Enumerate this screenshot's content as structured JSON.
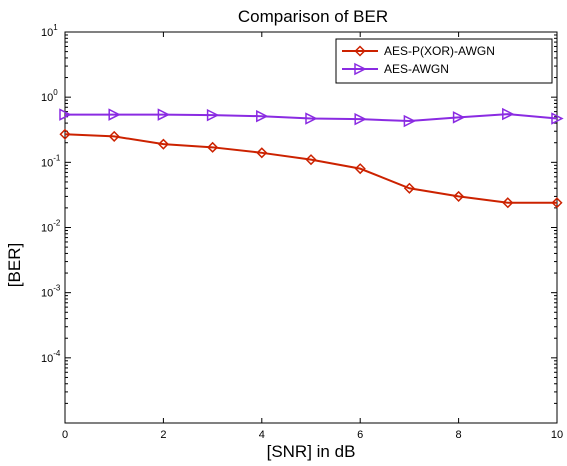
{
  "chart_data": {
    "type": "line",
    "title": "Comparison of BER",
    "xlabel": "[SNR] in dB",
    "ylabel": "[BER]",
    "xlim": [
      0,
      10
    ],
    "ylim": [
      1e-05,
      10
    ],
    "yscale": "log",
    "x": [
      0,
      1,
      2,
      3,
      4,
      5,
      6,
      7,
      8,
      9,
      10
    ],
    "xticks": [
      "0",
      "2",
      "4",
      "6",
      "8",
      "10"
    ],
    "yticks": [
      {
        "base": "10",
        "exp": "1"
      },
      {
        "base": "10",
        "exp": "0"
      },
      {
        "base": "10",
        "exp": "-1"
      },
      {
        "base": "10",
        "exp": "-2"
      },
      {
        "base": "10",
        "exp": "-3"
      },
      {
        "base": "10",
        "exp": "-4"
      }
    ],
    "legend_position": "top-right",
    "grid": false,
    "series": [
      {
        "name": "AES-P(XOR)-AWGN",
        "color": "#cc2200",
        "marker": "diamond",
        "values": [
          0.27,
          0.25,
          0.19,
          0.17,
          0.14,
          0.11,
          0.08,
          0.04,
          0.03,
          0.024,
          0.024
        ]
      },
      {
        "name": "AES-AWGN",
        "color": "#8a2be2",
        "marker": "triangle-right",
        "values": [
          0.54,
          0.54,
          0.54,
          0.53,
          0.51,
          0.47,
          0.46,
          0.43,
          0.49,
          0.55,
          0.47
        ]
      }
    ]
  }
}
